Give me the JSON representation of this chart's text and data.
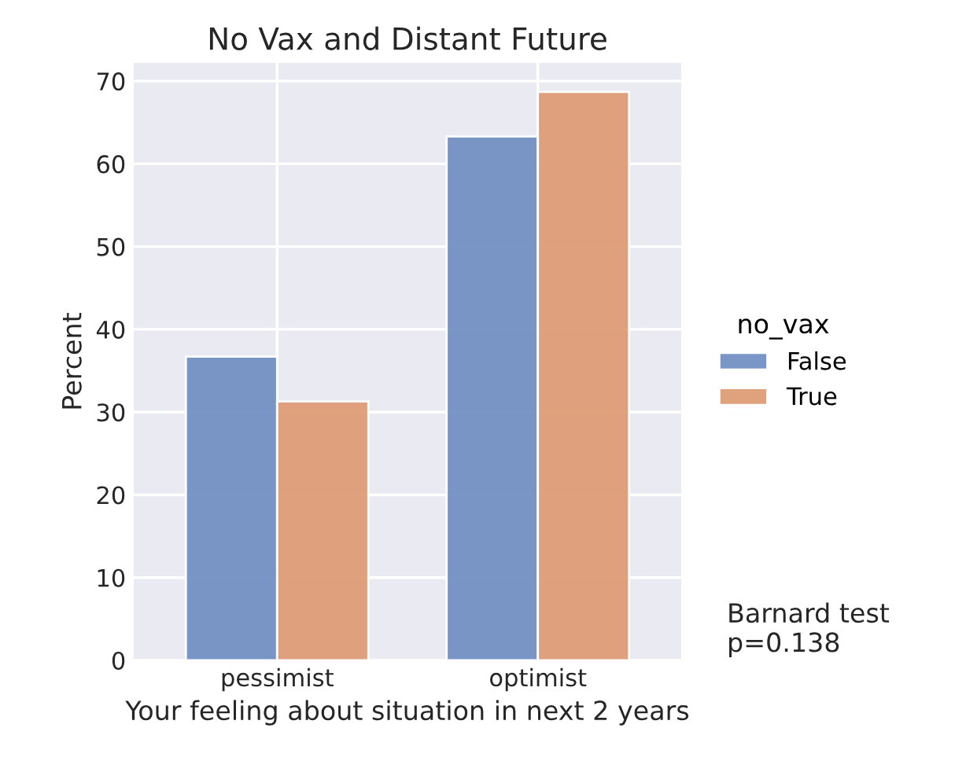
{
  "chart_data": {
    "type": "bar",
    "title": "No Vax and Distant Future",
    "xlabel": "Your feeling about situation in next 2 years",
    "ylabel": "Percent",
    "legend_title": "no_vax",
    "categories": [
      "pessimist",
      "optimist"
    ],
    "series": [
      {
        "name": "False",
        "color": "#7391c3",
        "values": [
          36.7,
          63.3
        ]
      },
      {
        "name": "True",
        "color": "#df9d77",
        "values": [
          31.3,
          68.7
        ]
      }
    ],
    "ylim": [
      0,
      72.2
    ],
    "yticks": [
      0,
      10,
      20,
      30,
      40,
      50,
      60,
      70
    ],
    "grid": true,
    "legend": "right",
    "annotations": [
      "Barnard test\np=0.138"
    ]
  }
}
